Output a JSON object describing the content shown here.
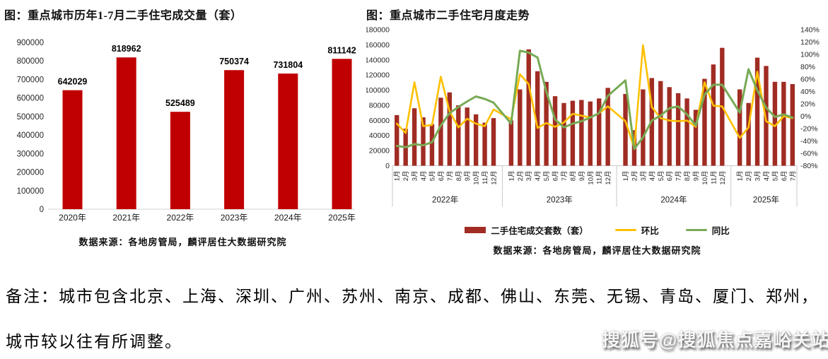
{
  "chart_data": [
    {
      "type": "bar",
      "title": "图：重点城市历年1-7月二手住宅成交量（套）",
      "source": "数据来源：各地房管局，麟评居住大数据研究院",
      "categories": [
        "2020年",
        "2021年",
        "2022年",
        "2023年",
        "2024年",
        "2025年"
      ],
      "values": [
        642029,
        818962,
        525489,
        750374,
        731804,
        811142
      ],
      "bar_color": "#C00000",
      "ylim": [
        0,
        900000
      ],
      "ytick_step": 100000,
      "grid": false,
      "value_labels": true
    },
    {
      "type": "bar+line",
      "title": "图：重点城市二手住宅月度走势",
      "source": "数据来源：各地房管局，麟评居住大数据研究院",
      "left_axis": {
        "min": 0,
        "max": 180000,
        "step": 20000
      },
      "right_axis": {
        "min": -80,
        "max": 140,
        "step": 20,
        "unit": "%"
      },
      "grid": false,
      "legend_position": "bottom",
      "year_groups": [
        {
          "label": "2022年",
          "months": [
            "1月",
            "2月",
            "3月",
            "4月",
            "5月",
            "6月",
            "7月",
            "8月",
            "9月",
            "10月",
            "11月",
            "12月"
          ]
        },
        {
          "label": "2023年",
          "months": [
            "1月",
            "2月",
            "3月",
            "4月",
            "5月",
            "6月",
            "7月",
            "8月",
            "9月",
            "10月",
            "11月",
            "12月"
          ]
        },
        {
          "label": "2024年",
          "months": [
            "1月",
            "2月",
            "3月",
            "4月",
            "5月",
            "6月",
            "7月",
            "8月",
            "9月",
            "10月",
            "11月",
            "12月"
          ]
        },
        {
          "label": "2025年",
          "months": [
            "1月",
            "2月",
            "3月",
            "4月",
            "5月",
            "6月",
            "7月"
          ]
        }
      ],
      "series": [
        {
          "name": "二手住宅成交套数（套）",
          "type": "bar",
          "axis": "left",
          "color": "#A02C23",
          "values": [
            67000,
            49000,
            76000,
            64000,
            55000,
            90000,
            97000,
            80000,
            77000,
            68000,
            57000,
            63000,
            60000,
            101000,
            154000,
            125000,
            111000,
            92000,
            83000,
            86000,
            87000,
            85000,
            89000,
            103000,
            95000,
            47000,
            101000,
            116000,
            112000,
            104000,
            96000,
            89000,
            74000,
            115000,
            134000,
            156000,
            101000,
            83000,
            143000,
            132000,
            111000,
            111000,
            108000
          ]
        },
        {
          "name": "环比",
          "type": "line",
          "axis": "right",
          "color": "#FFC000",
          "values": [
            -12,
            -27,
            55,
            -16,
            -14,
            64,
            8,
            -18,
            -4,
            -12,
            -16,
            11,
            -5,
            68,
            52,
            -19,
            -11,
            -17,
            -10,
            4,
            1,
            -2,
            5,
            16,
            -8,
            -51,
            115,
            15,
            -3,
            -7,
            -8,
            -7,
            -17,
            55,
            17,
            16,
            -35,
            -18,
            72,
            -8,
            -16,
            0,
            -3
          ]
        },
        {
          "name": "同比",
          "type": "line",
          "axis": "right",
          "color": "#78AA55",
          "values": [
            -48,
            -50,
            -45,
            -47,
            -42,
            -15,
            5,
            15,
            24,
            32,
            28,
            22,
            -12,
            106,
            103,
            95,
            40,
            -5,
            -18,
            -12,
            -8,
            -2,
            5,
            33,
            58,
            -53,
            -34,
            -7,
            1,
            13,
            16,
            3,
            -15,
            35,
            51,
            51,
            6,
            76,
            42,
            14,
            -1,
            3,
            -2
          ]
        }
      ]
    }
  ],
  "note": {
    "line1": "备注：城市包含北京、上海、深圳、广州、苏州、南京、成都、佛山、东莞、无锡、青岛、厦门、郑州，",
    "line2": "城市较以往有所调整。"
  },
  "watermark": {
    "text": "搜狐号@搜狐焦点嘉峪关站"
  }
}
